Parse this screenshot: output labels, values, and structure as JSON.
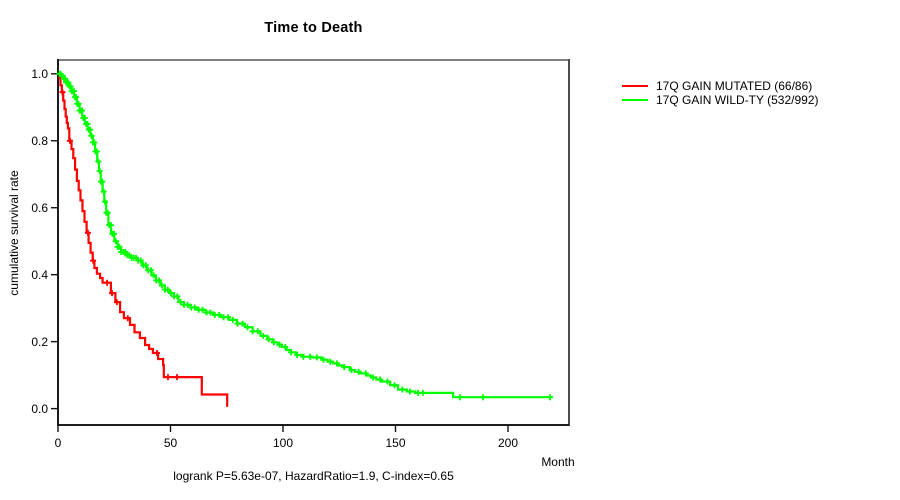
{
  "chart_data": {
    "type": "line",
    "subtype": "kaplan-meier-step",
    "title": "Time to Death",
    "xlabel": "Month",
    "ylabel": "cumulative survival rate",
    "annotation": "logrank P=5.63e-07, HazardRatio=1.9, C-index=0.65",
    "xlim": [
      0,
      227
    ],
    "ylim": [
      0.0,
      1.0
    ],
    "x_ticks": [
      0,
      50,
      100,
      150,
      200
    ],
    "y_ticks": [
      0.0,
      0.2,
      0.4,
      0.6,
      0.8,
      1.0
    ],
    "grid": false,
    "legend_position": "right-outside",
    "series": [
      {
        "name": "17Q GAIN MUTATED (66/86)",
        "color": "#ff0000",
        "events_total": "66/86",
        "steps": [
          [
            0,
            1.0
          ],
          [
            0.6,
            0.988
          ],
          [
            1.1,
            0.966
          ],
          [
            1.7,
            0.945
          ],
          [
            2.3,
            0.92
          ],
          [
            2.9,
            0.895
          ],
          [
            3.4,
            0.872
          ],
          [
            3.9,
            0.853
          ],
          [
            4.4,
            0.837
          ],
          [
            5.0,
            0.8
          ],
          [
            6.0,
            0.775
          ],
          [
            6.8,
            0.748
          ],
          [
            7.6,
            0.714
          ],
          [
            8.4,
            0.68
          ],
          [
            9.2,
            0.652
          ],
          [
            10.0,
            0.622
          ],
          [
            10.9,
            0.59
          ],
          [
            11.8,
            0.558
          ],
          [
            12.7,
            0.525
          ],
          [
            13.6,
            0.495
          ],
          [
            14.5,
            0.466
          ],
          [
            15.4,
            0.442
          ],
          [
            16.2,
            0.42
          ],
          [
            17.3,
            0.403
          ],
          [
            18.7,
            0.39
          ],
          [
            19.8,
            0.376
          ],
          [
            23.5,
            0.345
          ],
          [
            25.5,
            0.318
          ],
          [
            27.6,
            0.288
          ],
          [
            29.3,
            0.27
          ],
          [
            32.0,
            0.25
          ],
          [
            34.0,
            0.228
          ],
          [
            36.4,
            0.211
          ],
          [
            38.7,
            0.19
          ],
          [
            40.5,
            0.178
          ],
          [
            42.2,
            0.166
          ],
          [
            44.5,
            0.148
          ],
          [
            46.7,
            0.13
          ],
          [
            47.0,
            0.094
          ],
          [
            63.9,
            0.042
          ],
          [
            75.2,
            0.005
          ]
        ],
        "censor_months": [
          2.0,
          5.3,
          13.3,
          15.6,
          21.8,
          24.0,
          26.2,
          31.0,
          44.0,
          48.9,
          52.9
        ]
      },
      {
        "name": "17Q GAIN WILD-TY (532/992)",
        "color": "#00ff00",
        "events_total": "532/992",
        "steps": [
          [
            0,
            1.0
          ],
          [
            1.2,
            0.994
          ],
          [
            2.4,
            0.985
          ],
          [
            3.6,
            0.974
          ],
          [
            4.8,
            0.962
          ],
          [
            6.0,
            0.948
          ],
          [
            7.2,
            0.93
          ],
          [
            8.4,
            0.91
          ],
          [
            9.6,
            0.89
          ],
          [
            10.8,
            0.868
          ],
          [
            12.0,
            0.85
          ],
          [
            13.2,
            0.833
          ],
          [
            14.4,
            0.815
          ],
          [
            15.5,
            0.795
          ],
          [
            16.5,
            0.768
          ],
          [
            17.4,
            0.738
          ],
          [
            18.2,
            0.71
          ],
          [
            19.0,
            0.678
          ],
          [
            19.8,
            0.648
          ],
          [
            20.6,
            0.618
          ],
          [
            21.4,
            0.585
          ],
          [
            22.4,
            0.548
          ],
          [
            23.6,
            0.522
          ],
          [
            25.0,
            0.5
          ],
          [
            26.5,
            0.483
          ],
          [
            28.0,
            0.468
          ],
          [
            30.0,
            0.458
          ],
          [
            32.5,
            0.45
          ],
          [
            35.5,
            0.442
          ],
          [
            37.5,
            0.428
          ],
          [
            39.5,
            0.413
          ],
          [
            41.5,
            0.398
          ],
          [
            43.5,
            0.383
          ],
          [
            45.5,
            0.368
          ],
          [
            47.5,
            0.355
          ],
          [
            49.5,
            0.345
          ],
          [
            51.5,
            0.335
          ],
          [
            53.5,
            0.318
          ],
          [
            56.0,
            0.31
          ],
          [
            59.0,
            0.302
          ],
          [
            62.0,
            0.295
          ],
          [
            65.5,
            0.287
          ],
          [
            69.0,
            0.28
          ],
          [
            72.5,
            0.273
          ],
          [
            76.0,
            0.265
          ],
          [
            79.5,
            0.254
          ],
          [
            83.0,
            0.243
          ],
          [
            86.5,
            0.231
          ],
          [
            90.0,
            0.217
          ],
          [
            93.0,
            0.207
          ],
          [
            95.5,
            0.198
          ],
          [
            97.5,
            0.191
          ],
          [
            99.5,
            0.184
          ],
          [
            101.5,
            0.175
          ],
          [
            103.5,
            0.168
          ],
          [
            106.0,
            0.16
          ],
          [
            109.0,
            0.155
          ],
          [
            113.0,
            0.153
          ],
          [
            117.0,
            0.146
          ],
          [
            119.8,
            0.14
          ],
          [
            122.3,
            0.135
          ],
          [
            124.5,
            0.129
          ],
          [
            127.0,
            0.124
          ],
          [
            129.8,
            0.115
          ],
          [
            132.0,
            0.11
          ],
          [
            134.5,
            0.105
          ],
          [
            137.0,
            0.099
          ],
          [
            139.0,
            0.093
          ],
          [
            141.5,
            0.087
          ],
          [
            143.5,
            0.081
          ],
          [
            147.6,
            0.07
          ],
          [
            151.1,
            0.057
          ],
          [
            155.0,
            0.051
          ],
          [
            158.7,
            0.047
          ],
          [
            175.6,
            0.034
          ],
          [
            218.7,
            0.034
          ]
        ],
        "censor_months": [
          0.7,
          1.1,
          1.6,
          2.1,
          2.6,
          3.1,
          3.6,
          4.1,
          4.6,
          5.1,
          5.6,
          6.1,
          6.6,
          7.1,
          7.6,
          8.1,
          8.6,
          9.1,
          9.6,
          10.1,
          10.7,
          11.3,
          11.9,
          12.5,
          13.1,
          13.7,
          14.3,
          14.9,
          15.5,
          16.1,
          16.7,
          17.3,
          17.9,
          18.5,
          19.1,
          19.7,
          20.3,
          20.9,
          21.5,
          22.1,
          22.8,
          23.5,
          24.2,
          24.9,
          25.7,
          26.5,
          27.3,
          28.1,
          29.0,
          29.9,
          30.8,
          31.7,
          32.7,
          33.7,
          34.7,
          35.7,
          36.8,
          37.9,
          39.0,
          40.1,
          41.3,
          42.5,
          43.7,
          44.9,
          46.2,
          47.5,
          48.8,
          50.2,
          51.6,
          53.0,
          54.5,
          56.0,
          57.6,
          59.2,
          60.8,
          62.5,
          64.2,
          66.0,
          67.8,
          69.7,
          71.6,
          73.6,
          75.6,
          77.7,
          79.8,
          82.0,
          84.2,
          86.5,
          88.8,
          91.2,
          93.6,
          96.0,
          98.5,
          101.0,
          103.6,
          106.3,
          109.0,
          112.0,
          115.0,
          118.0,
          121.0,
          124.0,
          127.2,
          130.4,
          133.6,
          136.8,
          140.0,
          143.2,
          146.4,
          149.6,
          153.0,
          156.4,
          160.0,
          162.2,
          178.7,
          188.9,
          218.7
        ]
      }
    ]
  }
}
